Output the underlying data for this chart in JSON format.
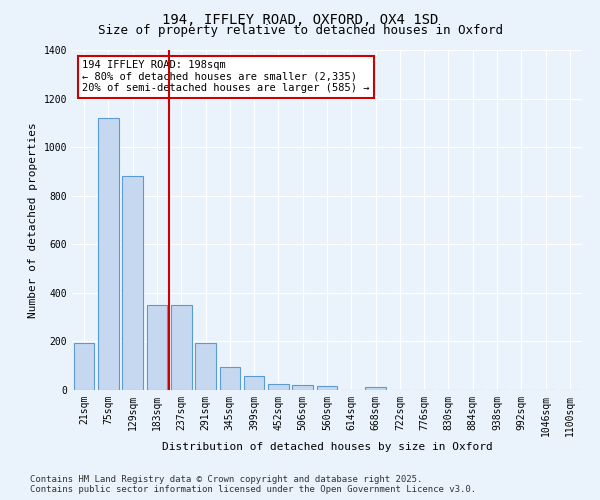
{
  "title1": "194, IFFLEY ROAD, OXFORD, OX4 1SD",
  "title2": "Size of property relative to detached houses in Oxford",
  "xlabel": "Distribution of detached houses by size in Oxford",
  "ylabel": "Number of detached properties",
  "categories": [
    "21sqm",
    "75sqm",
    "129sqm",
    "183sqm",
    "237sqm",
    "291sqm",
    "345sqm",
    "399sqm",
    "452sqm",
    "506sqm",
    "560sqm",
    "614sqm",
    "668sqm",
    "722sqm",
    "776sqm",
    "830sqm",
    "884sqm",
    "938sqm",
    "992sqm",
    "1046sqm",
    "1100sqm"
  ],
  "values": [
    195,
    1120,
    880,
    350,
    350,
    195,
    95,
    58,
    25,
    22,
    18,
    0,
    12,
    0,
    0,
    0,
    0,
    0,
    0,
    0,
    0
  ],
  "bar_color": "#c5d8f0",
  "bar_edge_color": "#5b9bd5",
  "vline_color": "#cc0000",
  "annotation_text": "194 IFFLEY ROAD: 198sqm\n← 80% of detached houses are smaller (2,335)\n20% of semi-detached houses are larger (585) →",
  "annotation_box_color": "#cc0000",
  "ylim": [
    0,
    1400
  ],
  "yticks": [
    0,
    200,
    400,
    600,
    800,
    1000,
    1200,
    1400
  ],
  "footer1": "Contains HM Land Registry data © Crown copyright and database right 2025.",
  "footer2": "Contains public sector information licensed under the Open Government Licence v3.0.",
  "bg_color": "#eaf3fb",
  "grid_color": "#ffffff",
  "title1_fontsize": 10,
  "title2_fontsize": 9,
  "axis_label_fontsize": 8,
  "tick_fontsize": 7,
  "annotation_fontsize": 7.5,
  "footer_fontsize": 6.5
}
